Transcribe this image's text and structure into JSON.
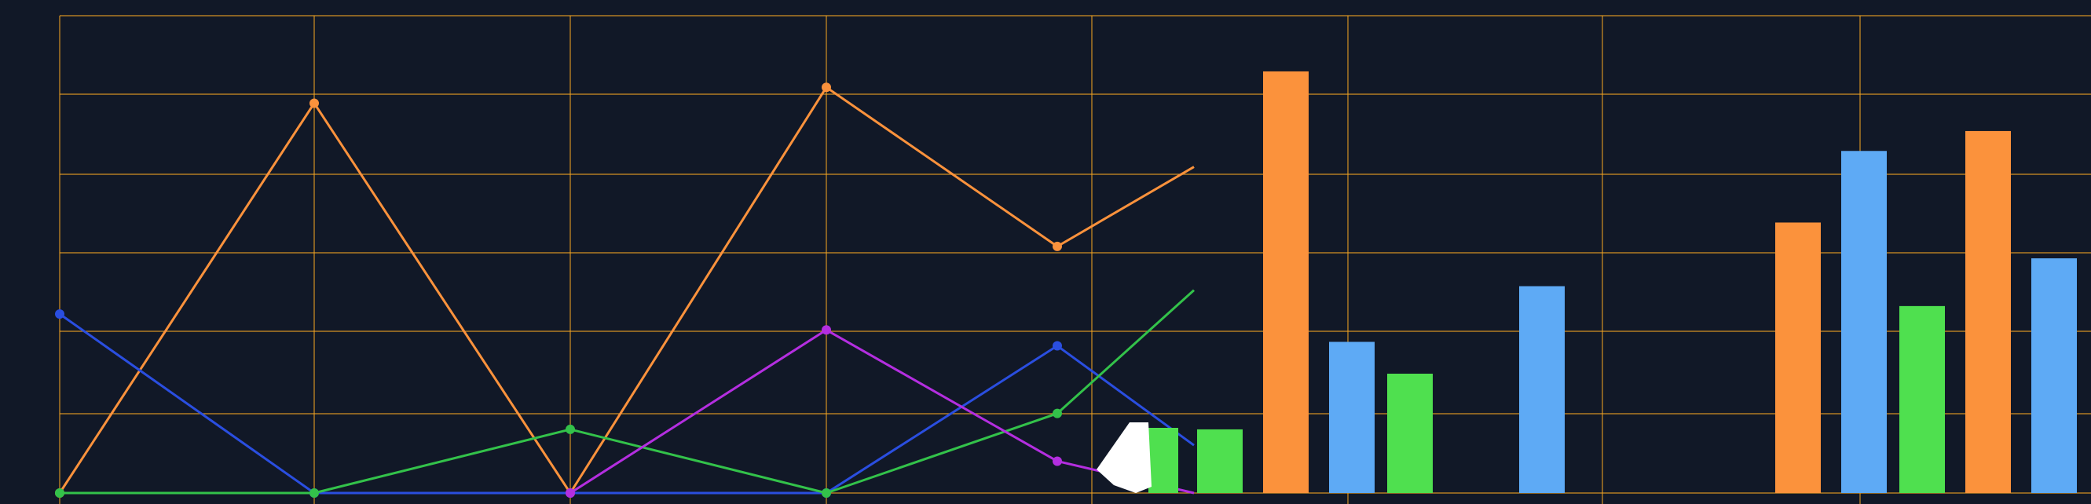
{
  "colors": {
    "background": "#111827",
    "grid": "#f5a623",
    "orange": "#fb923c",
    "blue": "#2a4ee0",
    "green": "#33c24a",
    "purple": "#b42ee0",
    "bar_blue": "#5eaaf5",
    "bar_green": "#4fe04f",
    "white_shape": "#ffffff"
  },
  "chart_data": [
    {
      "type": "line",
      "x": [
        0,
        1,
        2,
        3,
        4,
        5
      ],
      "ylim": [
        0,
        6
      ],
      "grid": true,
      "legend": "none",
      "series": [
        {
          "color": "orange",
          "values": [
            0,
            4.9,
            0,
            5.1,
            3.1,
            4.1
          ]
        },
        {
          "color": "blue",
          "values": [
            2.25,
            0,
            0,
            0,
            1.85,
            0.6
          ]
        },
        {
          "color": "green",
          "values": [
            0,
            0,
            0.8,
            0,
            1.0,
            2.55
          ]
        },
        {
          "color": "purple",
          "values": [
            null,
            null,
            0,
            2.05,
            0.4,
            0.0
          ]
        }
      ]
    },
    {
      "type": "bar",
      "categories": [
        "1",
        "2",
        "3",
        "4",
        "5"
      ],
      "ylim": [
        0,
        6
      ],
      "grid": true,
      "legend": "none",
      "series": [
        {
          "color": "bar_green",
          "values": [
            0.8,
            1.5,
            0,
            2.35,
            0
          ]
        },
        {
          "color": "orange",
          "values": [
            5.3,
            0,
            3.4,
            4.55,
            0
          ]
        },
        {
          "color": "bar_blue",
          "values": [
            1.9,
            2.6,
            4.3,
            2.95,
            0
          ]
        }
      ]
    }
  ]
}
